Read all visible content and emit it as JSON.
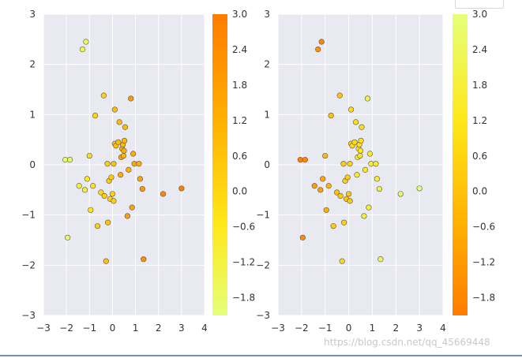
{
  "watermark": "https://blog.csdn.net/qq_45669448",
  "colors": {
    "axes_bg": "#e9e9f1",
    "grid": "#ffffff",
    "edge": "#555555"
  },
  "chart_data": [
    {
      "type": "scatter",
      "title": "",
      "xlabel": "",
      "ylabel": "",
      "xlim": [
        -3,
        4
      ],
      "ylim": [
        -3,
        3
      ],
      "xticks": [
        -3,
        -2,
        -1,
        0,
        1,
        2,
        3,
        4
      ],
      "yticks": [
        -3,
        -2,
        -1,
        0,
        1,
        2,
        3
      ],
      "grid": true,
      "colormap": "Wistia_r",
      "colorbar": {
        "range": [
          -2.1,
          3.0
        ],
        "ticks": [
          "3.0",
          "2.4",
          "1.8",
          "1.2",
          "0.6",
          "0.0",
          "-0.6",
          "-1.2",
          "-1.8"
        ],
        "tick_values": [
          3.0,
          2.4,
          1.8,
          1.2,
          0.6,
          0.0,
          -0.6,
          -1.2,
          -1.8
        ],
        "low_color": "#e5ff7a",
        "mid_low_color": "#ffe81a",
        "mid_color": "#ffb000",
        "high_color": "#ff7c00"
      },
      "points": [
        {
          "x": -1.15,
          "y": 2.45,
          "c": -1.8
        },
        {
          "x": -1.3,
          "y": 2.3,
          "c": -1.5
        },
        {
          "x": -2.05,
          "y": 0.1,
          "c": -2.0
        },
        {
          "x": -1.85,
          "y": 0.1,
          "c": -1.8
        },
        {
          "x": -1.95,
          "y": -1.45,
          "c": -1.6
        },
        {
          "x": -1.45,
          "y": -0.42,
          "c": -1.1
        },
        {
          "x": -1.2,
          "y": -0.5,
          "c": -1.0
        },
        {
          "x": -1.1,
          "y": -0.28,
          "c": -0.7
        },
        {
          "x": -1.0,
          "y": 0.18,
          "c": -0.2
        },
        {
          "x": -0.95,
          "y": -0.9,
          "c": -0.6
        },
        {
          "x": -0.85,
          "y": -0.42,
          "c": -0.4
        },
        {
          "x": -0.75,
          "y": 0.98,
          "c": 0.0
        },
        {
          "x": -0.65,
          "y": -1.22,
          "c": 0.3
        },
        {
          "x": -0.5,
          "y": -0.55,
          "c": -0.1
        },
        {
          "x": -0.35,
          "y": -0.62,
          "c": 0.2
        },
        {
          "x": -0.38,
          "y": 1.38,
          "c": 0.1
        },
        {
          "x": -0.28,
          "y": -1.92,
          "c": 0.7
        },
        {
          "x": -0.22,
          "y": 0.02,
          "c": 0.3
        },
        {
          "x": -0.2,
          "y": -1.15,
          "c": 0.5
        },
        {
          "x": -0.15,
          "y": -0.32,
          "c": 0.4
        },
        {
          "x": -0.1,
          "y": -0.68,
          "c": 0.1
        },
        {
          "x": -0.05,
          "y": -0.25,
          "c": 0.3
        },
        {
          "x": 0.0,
          "y": -0.58,
          "c": 0.2
        },
        {
          "x": 0.05,
          "y": 0.02,
          "c": 0.6
        },
        {
          "x": 0.05,
          "y": -0.72,
          "c": 0.2
        },
        {
          "x": 0.1,
          "y": 1.1,
          "c": 0.8
        },
        {
          "x": 0.1,
          "y": 0.42,
          "c": 0.6
        },
        {
          "x": 0.15,
          "y": 0.38,
          "c": 0.8
        },
        {
          "x": 0.25,
          "y": 0.45,
          "c": 0.8
        },
        {
          "x": 0.3,
          "y": 0.85,
          "c": 0.9
        },
        {
          "x": 0.35,
          "y": -0.2,
          "c": 1.3
        },
        {
          "x": 0.38,
          "y": 0.15,
          "c": 1.5
        },
        {
          "x": 0.42,
          "y": 0.32,
          "c": 1.2
        },
        {
          "x": 0.45,
          "y": 0.4,
          "c": 1.0
        },
        {
          "x": 0.48,
          "y": 0.18,
          "c": 1.1
        },
        {
          "x": 0.5,
          "y": 0.28,
          "c": 1.3
        },
        {
          "x": 0.52,
          "y": 0.48,
          "c": 1.0
        },
        {
          "x": 0.55,
          "y": 0.75,
          "c": 0.9
        },
        {
          "x": 0.65,
          "y": -1.02,
          "c": 1.8
        },
        {
          "x": 0.7,
          "y": -0.1,
          "c": 1.2
        },
        {
          "x": 0.8,
          "y": 1.32,
          "c": 2.0
        },
        {
          "x": 0.85,
          "y": -0.85,
          "c": 1.7
        },
        {
          "x": 0.9,
          "y": 0.22,
          "c": 1.5
        },
        {
          "x": 0.95,
          "y": 0.02,
          "c": 1.6
        },
        {
          "x": 1.15,
          "y": 0.02,
          "c": 1.4
        },
        {
          "x": 1.2,
          "y": -0.28,
          "c": 1.6
        },
        {
          "x": 1.3,
          "y": -0.48,
          "c": 2.0
        },
        {
          "x": 1.35,
          "y": -1.88,
          "c": 2.4
        },
        {
          "x": 2.2,
          "y": -0.58,
          "c": 2.7
        },
        {
          "x": 3.0,
          "y": -0.47,
          "c": 3.0
        }
      ]
    },
    {
      "type": "scatter",
      "title": "",
      "xlabel": "",
      "ylabel": "",
      "xlim": [
        -3,
        4
      ],
      "ylim": [
        -3,
        3
      ],
      "xticks": [
        -3,
        -2,
        -1,
        0,
        1,
        2,
        3,
        4
      ],
      "yticks": [
        -3,
        -2,
        -1,
        0,
        1,
        2,
        3
      ],
      "grid": true,
      "colormap": "Wistia",
      "colorbar": {
        "range": [
          -2.1,
          3.0
        ],
        "ticks": [
          "3.0",
          "2.4",
          "1.8",
          "1.2",
          "0.6",
          "0.0",
          "-0.6",
          "-1.2",
          "-1.8"
        ],
        "tick_values": [
          3.0,
          2.4,
          1.8,
          1.2,
          0.6,
          0.0,
          -0.6,
          -1.2,
          -1.8
        ],
        "low_color": "#ff7c00",
        "mid_low_color": "#ffb000",
        "mid_color": "#ffe81a",
        "high_color": "#e5ff7a"
      },
      "points": [
        {
          "x": -1.15,
          "y": 2.45,
          "c": -1.8
        },
        {
          "x": -1.3,
          "y": 2.3,
          "c": -1.5
        },
        {
          "x": -2.05,
          "y": 0.1,
          "c": -2.0
        },
        {
          "x": -1.85,
          "y": 0.1,
          "c": -1.8
        },
        {
          "x": -1.95,
          "y": -1.45,
          "c": -1.6
        },
        {
          "x": -1.45,
          "y": -0.42,
          "c": -1.1
        },
        {
          "x": -1.2,
          "y": -0.5,
          "c": -1.0
        },
        {
          "x": -1.1,
          "y": -0.28,
          "c": -0.7
        },
        {
          "x": -1.0,
          "y": 0.18,
          "c": -0.2
        },
        {
          "x": -0.95,
          "y": -0.9,
          "c": -0.6
        },
        {
          "x": -0.85,
          "y": -0.42,
          "c": -0.4
        },
        {
          "x": -0.75,
          "y": 0.98,
          "c": 0.0
        },
        {
          "x": -0.65,
          "y": -1.22,
          "c": 0.3
        },
        {
          "x": -0.5,
          "y": -0.55,
          "c": -0.1
        },
        {
          "x": -0.35,
          "y": -0.62,
          "c": 0.2
        },
        {
          "x": -0.38,
          "y": 1.38,
          "c": 0.1
        },
        {
          "x": -0.28,
          "y": -1.92,
          "c": 0.7
        },
        {
          "x": -0.22,
          "y": 0.02,
          "c": 0.3
        },
        {
          "x": -0.2,
          "y": -1.15,
          "c": 0.5
        },
        {
          "x": -0.15,
          "y": -0.32,
          "c": 0.4
        },
        {
          "x": -0.1,
          "y": -0.68,
          "c": 0.1
        },
        {
          "x": -0.05,
          "y": -0.25,
          "c": 0.3
        },
        {
          "x": 0.0,
          "y": -0.58,
          "c": 0.2
        },
        {
          "x": 0.05,
          "y": 0.02,
          "c": 0.6
        },
        {
          "x": 0.05,
          "y": -0.72,
          "c": 0.2
        },
        {
          "x": 0.1,
          "y": 1.1,
          "c": 0.8
        },
        {
          "x": 0.1,
          "y": 0.42,
          "c": 0.6
        },
        {
          "x": 0.15,
          "y": 0.38,
          "c": 0.8
        },
        {
          "x": 0.25,
          "y": 0.45,
          "c": 0.8
        },
        {
          "x": 0.3,
          "y": 0.85,
          "c": 0.9
        },
        {
          "x": 0.35,
          "y": -0.2,
          "c": 1.3
        },
        {
          "x": 0.38,
          "y": 0.15,
          "c": 1.5
        },
        {
          "x": 0.42,
          "y": 0.32,
          "c": 1.2
        },
        {
          "x": 0.45,
          "y": 0.4,
          "c": 1.0
        },
        {
          "x": 0.48,
          "y": 0.18,
          "c": 1.1
        },
        {
          "x": 0.5,
          "y": 0.28,
          "c": 1.3
        },
        {
          "x": 0.52,
          "y": 0.48,
          "c": 1.0
        },
        {
          "x": 0.55,
          "y": 0.75,
          "c": 0.9
        },
        {
          "x": 0.65,
          "y": -1.02,
          "c": 1.8
        },
        {
          "x": 0.7,
          "y": -0.1,
          "c": 1.2
        },
        {
          "x": 0.8,
          "y": 1.32,
          "c": 2.0
        },
        {
          "x": 0.85,
          "y": -0.85,
          "c": 1.7
        },
        {
          "x": 0.9,
          "y": 0.22,
          "c": 1.5
        },
        {
          "x": 0.95,
          "y": 0.02,
          "c": 1.6
        },
        {
          "x": 1.15,
          "y": 0.02,
          "c": 1.4
        },
        {
          "x": 1.2,
          "y": -0.28,
          "c": 1.6
        },
        {
          "x": 1.3,
          "y": -0.48,
          "c": 2.0
        },
        {
          "x": 1.35,
          "y": -1.88,
          "c": 2.4
        },
        {
          "x": 2.2,
          "y": -0.58,
          "c": 2.7
        },
        {
          "x": 3.0,
          "y": -0.47,
          "c": 3.0
        }
      ]
    }
  ]
}
